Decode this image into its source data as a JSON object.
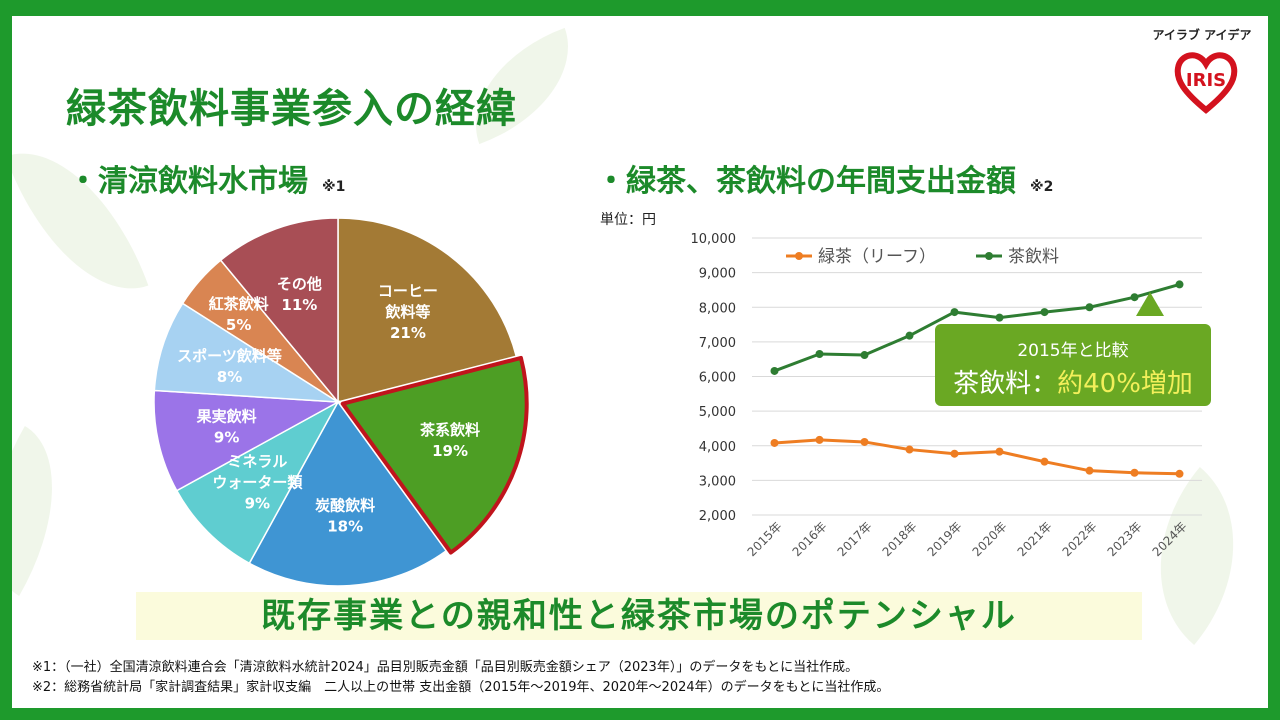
{
  "title": "緑茶飲料事業参入の経緯",
  "logo": {
    "brand_kana": "アイラブ アイデア",
    "brand": "IRIS"
  },
  "colors": {
    "frame": "#1e9a2c",
    "title": "#1c8a2a",
    "highlight": "#c0141c",
    "callout_bg": "#6aa823",
    "callout_accent": "#f2ef5a"
  },
  "pie_section": {
    "heading": "・清涼飲料水市場",
    "note": "※1"
  },
  "line_section": {
    "heading": "・緑茶、茶飲料の年間支出金額",
    "note": "※2",
    "unit_label": "単位：円"
  },
  "chart_data": [
    {
      "type": "pie",
      "title": "清涼飲料水市場",
      "highlighted": "茶系飲料",
      "slices": [
        {
          "label_lines": [
            "コーヒー",
            "飲料等"
          ],
          "label": "コーヒー飲料等",
          "value": 21,
          "value_label": "21%",
          "color": "#a37a35",
          "text_color": "#ffffff"
        },
        {
          "label_lines": [
            "茶系飲料"
          ],
          "label": "茶系飲料",
          "value": 19,
          "value_label": "19%",
          "color": "#4d9e24",
          "text_color": "#ffffff"
        },
        {
          "label_lines": [
            "炭酸飲料"
          ],
          "label": "炭酸飲料",
          "value": 18,
          "value_label": "18%",
          "color": "#3f95d3",
          "text_color": "#ffffff"
        },
        {
          "label_lines": [
            "ミネラル",
            "ウォーター類"
          ],
          "label": "ミネラルウォーター類",
          "value": 9,
          "value_label": "9%",
          "color": "#5fcdd0",
          "text_color": "#ffffff"
        },
        {
          "label_lines": [
            "果実飲料"
          ],
          "label": "果実飲料",
          "value": 9,
          "value_label": "9%",
          "color": "#9b74e8",
          "text_color": "#ffffff"
        },
        {
          "label_lines": [
            "スポーツ飲料等"
          ],
          "label": "スポーツ飲料等",
          "value": 8,
          "value_label": "8%",
          "color": "#a7d2f2",
          "text_color": "#ffffff"
        },
        {
          "label_lines": [
            "紅茶飲料"
          ],
          "label": "紅茶飲料",
          "value": 5,
          "value_label": "5%",
          "color": "#d98552",
          "text_color": "#ffffff"
        },
        {
          "label_lines": [
            "その他"
          ],
          "label": "その他",
          "value": 11,
          "value_label": "11%",
          "color": "#a84e55",
          "text_color": "#ffffff"
        }
      ]
    },
    {
      "type": "line",
      "title": "緑茶、茶飲料の年間支出金額",
      "ylabel": "単位：円",
      "ylim": [
        2000,
        10000
      ],
      "yticks": [
        2000,
        3000,
        4000,
        5000,
        6000,
        7000,
        8000,
        9000,
        10000
      ],
      "ytick_labels": [
        "2,000",
        "3,000",
        "4,000",
        "5,000",
        "6,000",
        "7,000",
        "8,000",
        "9,000",
        "10,000"
      ],
      "categories": [
        "2015年",
        "2016年",
        "2017年",
        "2018年",
        "2019年",
        "2020年",
        "2021年",
        "2022年",
        "2023年",
        "2024年"
      ],
      "series": [
        {
          "name": "緑茶（リーフ）",
          "color": "#ee7d22",
          "values": [
            4080,
            4170,
            4110,
            3890,
            3770,
            3830,
            3540,
            3280,
            3220,
            3190
          ]
        },
        {
          "name": "茶飲料",
          "color": "#2e7d32",
          "values": [
            6160,
            6650,
            6620,
            7180,
            7860,
            7700,
            7860,
            8000,
            8290,
            8660
          ]
        }
      ],
      "annotation": {
        "line1": "2015年と比較",
        "line2_prefix": "茶飲料：",
        "line2_value": "約40%増加"
      }
    }
  ],
  "banner": "既存事業との親和性と緑茶市場のポテンシャル",
  "footnotes": [
    "※1：（一社）全国清涼飲料連合会「清涼飲料水統計2024」品目別販売金額「品目別販売金額シェア（2023年）」のデータをもとに当社作成。",
    "※2：総務省統計局「家計調査結果」家計収支編　二人以上の世帯 支出金額（2015年～2019年、2020年～2024年）のデータをもとに当社作成。"
  ]
}
